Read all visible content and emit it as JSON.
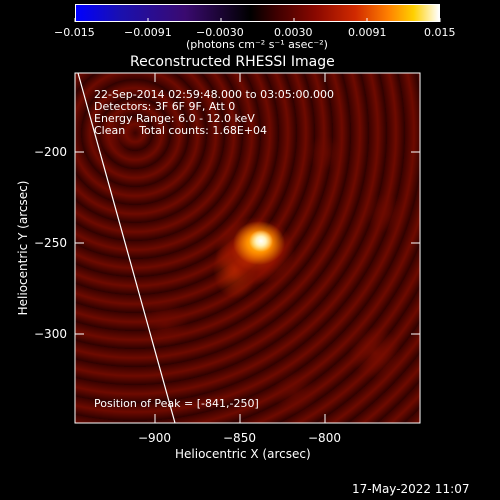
{
  "colorbar": {
    "tick_labels": [
      "−0.015",
      "−0.0091",
      "−0.0030",
      "0.0030",
      "0.0091",
      "0.015"
    ],
    "units": "(photons cm⁻² s⁻¹ asec⁻²)",
    "colors": [
      "#0000ff",
      "#3a0a70",
      "#000000",
      "#5a0000",
      "#c21800",
      "#ff7a00",
      "#ffd200",
      "#ffffff"
    ]
  },
  "plot": {
    "title": "Reconstructed RHESSI Image",
    "xlabel": "Heliocentric X (arcsec)",
    "ylabel": "Heliocentric Y (arcsec)",
    "x_ticks": [
      "−900",
      "−850",
      "−800"
    ],
    "y_ticks": [
      "−200",
      "−250",
      "−300"
    ],
    "info_lines": [
      "22-Sep-2014 02:59:48.000 to 03:05:00.000",
      "Detectors: 3F 6F 9F, Att 0",
      "Energy Range: 6.0 - 12.0 keV",
      "Clean    Total counts: 1.68E+04"
    ],
    "peak_text": "Position of Peak = [-841,-250]"
  },
  "timestamp": "17-May-2022 11:07"
}
